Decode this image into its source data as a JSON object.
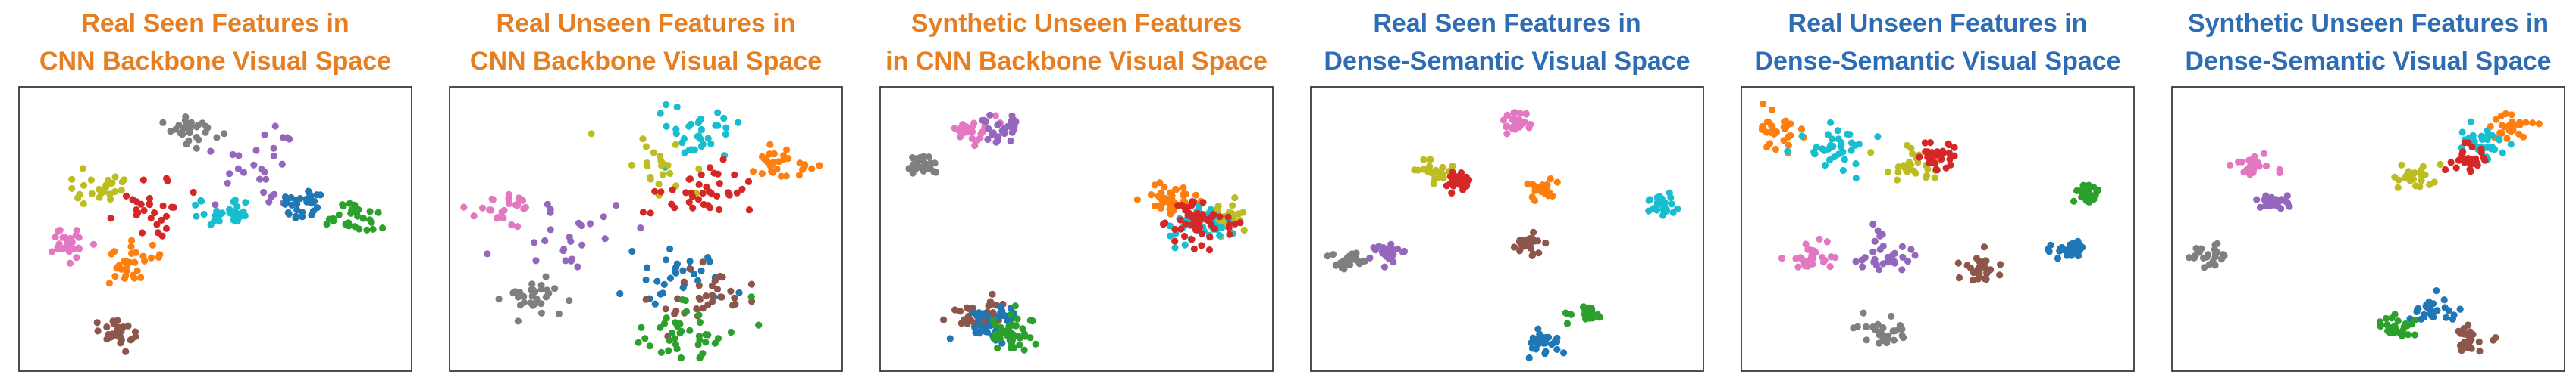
{
  "colors": {
    "orange_title": "#E67E22",
    "blue_title": "#2E6DB4",
    "classes": [
      "#1F77B4",
      "#FF7F0E",
      "#2CA02C",
      "#D62728",
      "#9467BD",
      "#8C564B",
      "#E377C2",
      "#7F7F7F",
      "#BCBD22",
      "#17BECF"
    ]
  },
  "chart_data": [
    {
      "type": "scatter",
      "title": [
        "Real Seen Features in",
        "CNN Backbone Visual Space"
      ],
      "title_color": "orange",
      "xlim": [
        0,
        100
      ],
      "ylim": [
        0,
        100
      ],
      "grid": false,
      "clusters": [
        {
          "color": 7,
          "x": 44,
          "y": 87,
          "n": 30,
          "s": 3.2
        },
        {
          "color": 4,
          "x": 60,
          "y": 70,
          "n": 22,
          "s": 7
        },
        {
          "color": 4,
          "x": 67,
          "y": 85,
          "n": 5,
          "s": 1.5
        },
        {
          "color": 8,
          "x": 19,
          "y": 67,
          "n": 26,
          "s": 4.5
        },
        {
          "color": 3,
          "x": 33,
          "y": 59,
          "n": 28,
          "s": 5
        },
        {
          "color": 6,
          "x": 10,
          "y": 45,
          "n": 28,
          "s": 3.5
        },
        {
          "color": 1,
          "x": 28,
          "y": 37,
          "n": 30,
          "s": 5
        },
        {
          "color": 9,
          "x": 53,
          "y": 56,
          "n": 32,
          "s": 3.5
        },
        {
          "color": 0,
          "x": 73,
          "y": 60,
          "n": 28,
          "s": 3.5
        },
        {
          "color": 2,
          "x": 88,
          "y": 55,
          "n": 30,
          "s": 3.5
        },
        {
          "color": 5,
          "x": 23,
          "y": 10,
          "n": 28,
          "s": 3
        }
      ]
    },
    {
      "type": "scatter",
      "title": [
        "Real Unseen Features in",
        "CNN Backbone Visual Space"
      ],
      "title_color": "orange",
      "xlim": [
        0,
        100
      ],
      "ylim": [
        0,
        100
      ],
      "grid": false,
      "clusters": [
        {
          "color": 9,
          "x": 63,
          "y": 85,
          "n": 34,
          "s": 6
        },
        {
          "color": 8,
          "x": 52,
          "y": 72,
          "n": 22,
          "s": 6
        },
        {
          "color": 3,
          "x": 64,
          "y": 63,
          "n": 38,
          "s": 6
        },
        {
          "color": 1,
          "x": 87,
          "y": 75,
          "n": 30,
          "s": 4
        },
        {
          "color": 6,
          "x": 10,
          "y": 58,
          "n": 26,
          "s": 4
        },
        {
          "color": 4,
          "x": 28,
          "y": 45,
          "n": 24,
          "s": 8
        },
        {
          "color": 7,
          "x": 20,
          "y": 25,
          "n": 30,
          "s": 3.5
        },
        {
          "color": 0,
          "x": 60,
          "y": 33,
          "n": 32,
          "s": 8
        },
        {
          "color": 5,
          "x": 66,
          "y": 25,
          "n": 34,
          "s": 7
        },
        {
          "color": 2,
          "x": 62,
          "y": 11,
          "n": 40,
          "s": 7
        }
      ]
    },
    {
      "type": "scatter",
      "title": [
        "Synthetic Unseen Features",
        "in CNN Backbone Visual Space"
      ],
      "title_color": "orange",
      "xlim": [
        0,
        100
      ],
      "ylim": [
        0,
        100
      ],
      "grid": false,
      "clusters": [
        {
          "color": 6,
          "x": 22,
          "y": 88,
          "n": 28,
          "s": 3
        },
        {
          "color": 4,
          "x": 30,
          "y": 88,
          "n": 28,
          "s": 3
        },
        {
          "color": 7,
          "x": 8,
          "y": 74,
          "n": 28,
          "s": 2.2
        },
        {
          "color": 1,
          "x": 75,
          "y": 61,
          "n": 40,
          "s": 3.5
        },
        {
          "color": 8,
          "x": 90,
          "y": 54,
          "n": 40,
          "s": 3.5
        },
        {
          "color": 9,
          "x": 83,
          "y": 52,
          "n": 50,
          "s": 4
        },
        {
          "color": 3,
          "x": 83,
          "y": 53,
          "n": 55,
          "s": 4.5
        },
        {
          "color": 5,
          "x": 24,
          "y": 16,
          "n": 45,
          "s": 4
        },
        {
          "color": 0,
          "x": 28,
          "y": 14,
          "n": 40,
          "s": 4
        },
        {
          "color": 2,
          "x": 32,
          "y": 10,
          "n": 40,
          "s": 4
        }
      ]
    },
    {
      "type": "scatter",
      "title": [
        "Real Seen Features in",
        "Dense-Semantic Visual Space"
      ],
      "title_color": "blue",
      "xlim": [
        0,
        100
      ],
      "ylim": [
        0,
        100
      ],
      "grid": false,
      "clusters": [
        {
          "color": 6,
          "x": 53,
          "y": 90,
          "n": 26,
          "s": 2.2
        },
        {
          "color": 8,
          "x": 30,
          "y": 72,
          "n": 24,
          "s": 2.5
        },
        {
          "color": 3,
          "x": 37,
          "y": 68,
          "n": 24,
          "s": 2.2
        },
        {
          "color": 1,
          "x": 59,
          "y": 66,
          "n": 24,
          "s": 2.2
        },
        {
          "color": 9,
          "x": 92,
          "y": 59,
          "n": 26,
          "s": 2.2
        },
        {
          "color": 5,
          "x": 55,
          "y": 44,
          "n": 24,
          "s": 2.2
        },
        {
          "color": 4,
          "x": 18,
          "y": 42,
          "n": 24,
          "s": 2.5
        },
        {
          "color": 7,
          "x": 8,
          "y": 38,
          "n": 26,
          "s": 2.2
        },
        {
          "color": 2,
          "x": 72,
          "y": 18,
          "n": 26,
          "s": 2.2
        },
        {
          "color": 0,
          "x": 61,
          "y": 8,
          "n": 30,
          "s": 2.5
        }
      ]
    },
    {
      "type": "scatter",
      "title": [
        "Real Unseen Features in",
        "Dense-Semantic Visual Space"
      ],
      "title_color": "blue",
      "xlim": [
        0,
        100
      ],
      "ylim": [
        0,
        100
      ],
      "grid": false,
      "clusters": [
        {
          "color": 1,
          "x": 8,
          "y": 88,
          "n": 30,
          "s": 3.5
        },
        {
          "color": 9,
          "x": 22,
          "y": 78,
          "n": 34,
          "s": 5
        },
        {
          "color": 8,
          "x": 44,
          "y": 74,
          "n": 30,
          "s": 4.5
        },
        {
          "color": 3,
          "x": 50,
          "y": 78,
          "n": 30,
          "s": 3
        },
        {
          "color": 2,
          "x": 90,
          "y": 63,
          "n": 26,
          "s": 2.2
        },
        {
          "color": 0,
          "x": 86,
          "y": 42,
          "n": 28,
          "s": 2.5
        },
        {
          "color": 6,
          "x": 17,
          "y": 40,
          "n": 28,
          "s": 3
        },
        {
          "color": 4,
          "x": 36,
          "y": 40,
          "n": 30,
          "s": 5
        },
        {
          "color": 5,
          "x": 62,
          "y": 34,
          "n": 28,
          "s": 3
        },
        {
          "color": 7,
          "x": 35,
          "y": 10,
          "n": 28,
          "s": 3
        }
      ]
    },
    {
      "type": "scatter",
      "title": [
        "Synthetic Unseen Features in",
        "Dense-Semantic Visual Space"
      ],
      "title_color": "blue",
      "xlim": [
        0,
        100
      ],
      "ylim": [
        0,
        100
      ],
      "grid": false,
      "clusters": [
        {
          "color": 1,
          "x": 88,
          "y": 89,
          "n": 28,
          "s": 3
        },
        {
          "color": 9,
          "x": 81,
          "y": 83,
          "n": 28,
          "s": 3
        },
        {
          "color": 3,
          "x": 76,
          "y": 76,
          "n": 28,
          "s": 3
        },
        {
          "color": 8,
          "x": 62,
          "y": 70,
          "n": 26,
          "s": 2.5
        },
        {
          "color": 6,
          "x": 19,
          "y": 74,
          "n": 24,
          "s": 2.5
        },
        {
          "color": 4,
          "x": 24,
          "y": 60,
          "n": 24,
          "s": 2.5
        },
        {
          "color": 7,
          "x": 7,
          "y": 40,
          "n": 24,
          "s": 2.2
        },
        {
          "color": 0,
          "x": 68,
          "y": 20,
          "n": 26,
          "s": 2.5
        },
        {
          "color": 2,
          "x": 57,
          "y": 13,
          "n": 26,
          "s": 2.5
        },
        {
          "color": 5,
          "x": 77,
          "y": 8,
          "n": 24,
          "s": 2.5
        }
      ]
    }
  ]
}
